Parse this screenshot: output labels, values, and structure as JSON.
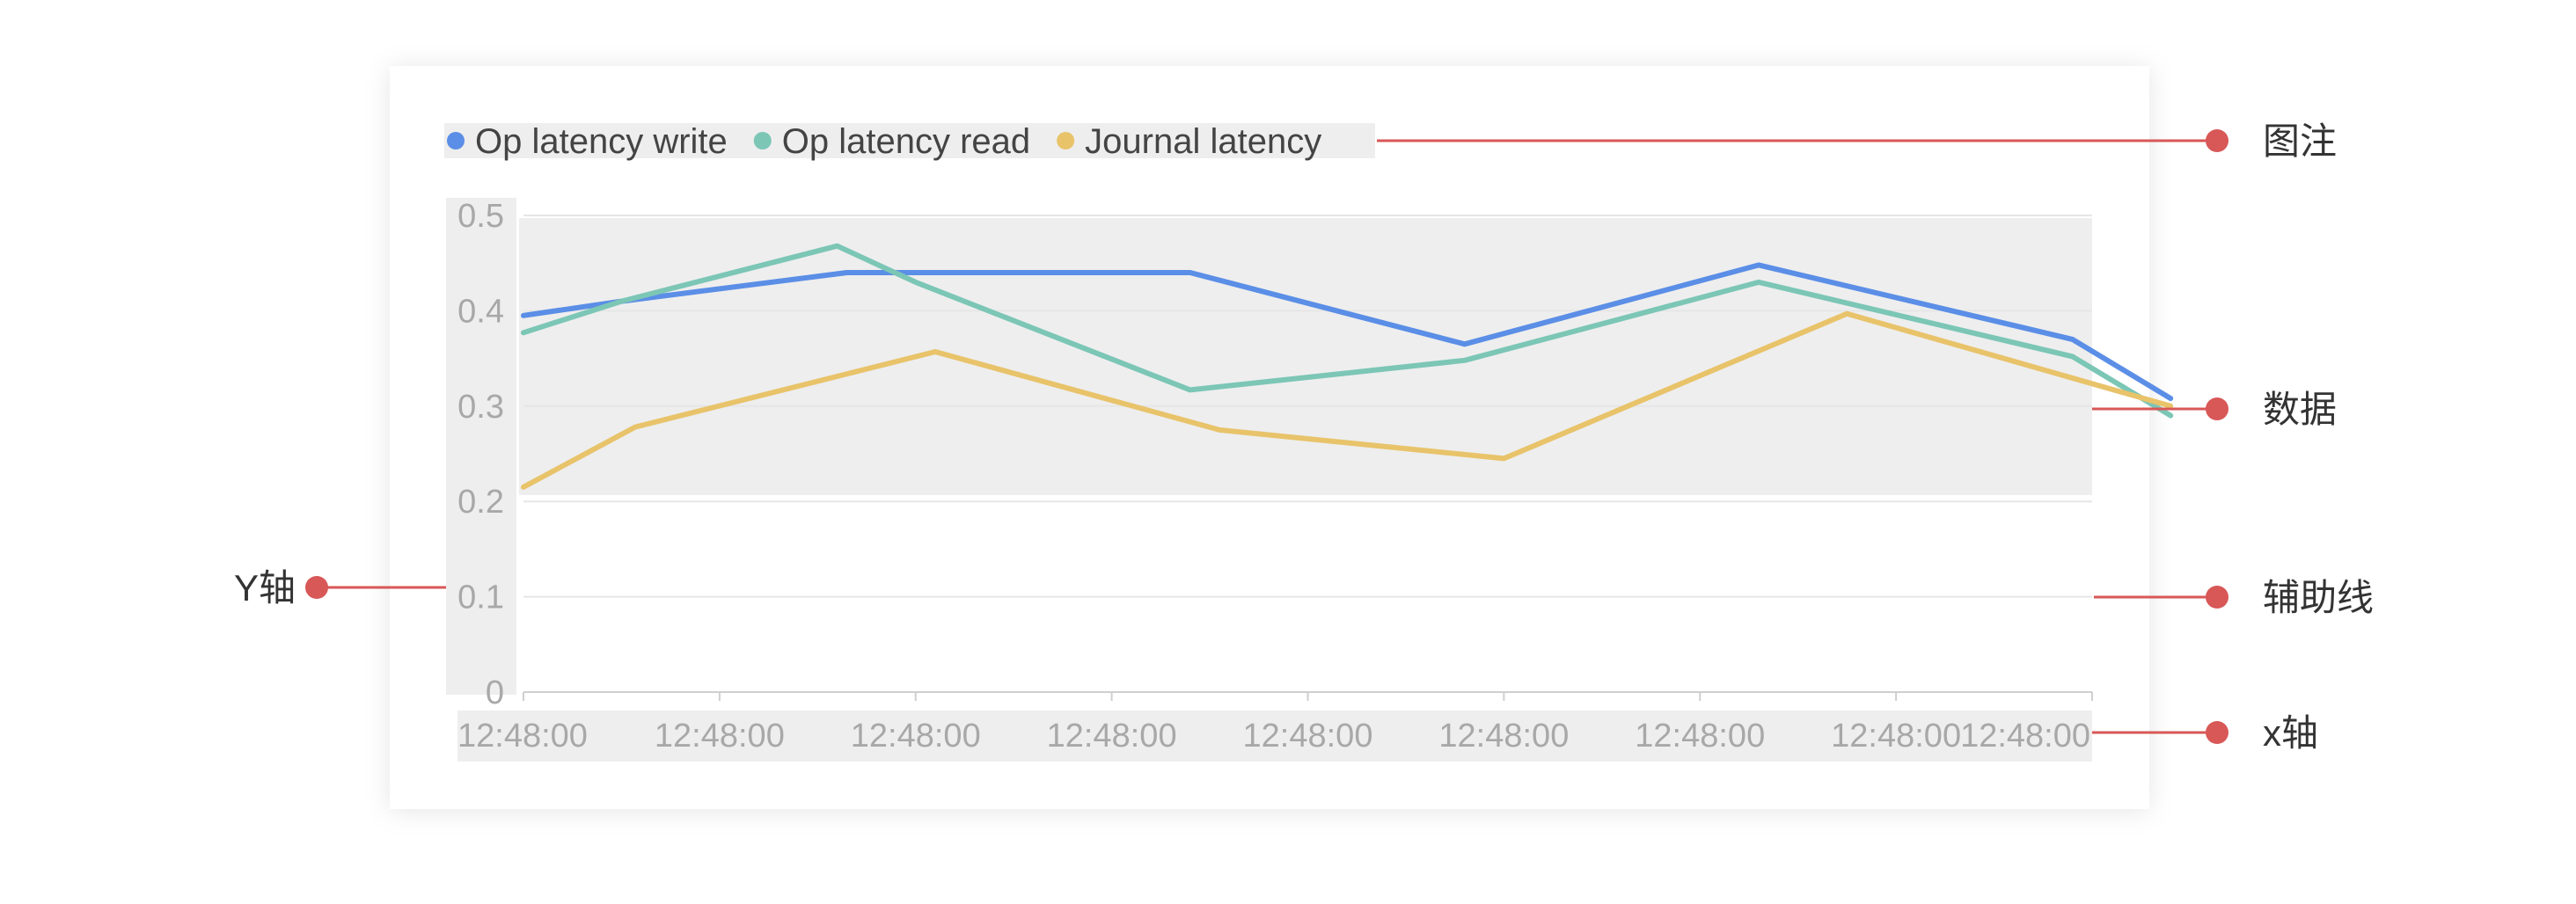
{
  "chart_data": {
    "type": "line",
    "title": "",
    "xlabel": "",
    "ylabel": "",
    "ylim": [
      0,
      0.5
    ],
    "yticks": [
      "0",
      "0.1",
      "0.2",
      "0.3",
      "0.4",
      "0.5"
    ],
    "categories": [
      "12:48:00",
      "12:48:00",
      "12:48:00",
      "12:48:00",
      "12:48:00",
      "12:48:00",
      "12:48:00",
      "12:48:00",
      "12:48:00"
    ],
    "grid": true,
    "legend_position": "top-left",
    "series": [
      {
        "name": "Op latency write",
        "color": "#5b8ee6",
        "x": [
          0,
          0.5,
          1.65,
          3.4,
          4.8,
          6.3,
          7.9,
          8.4
        ],
        "y": [
          0.395,
          0.41,
          0.44,
          0.44,
          0.365,
          0.448,
          0.37,
          0.308
        ]
      },
      {
        "name": "Op latency read",
        "color": "#7cc6b6",
        "x": [
          0,
          0.5,
          1.6,
          2.0,
          3.4,
          4.8,
          6.3,
          7.9,
          8.4
        ],
        "y": [
          0.377,
          0.41,
          0.468,
          0.43,
          0.317,
          0.348,
          0.43,
          0.352,
          0.29
        ]
      },
      {
        "name": "Journal latency",
        "color": "#e8c36a",
        "x": [
          0,
          0.57,
          2.1,
          3.55,
          5.0,
          6.75,
          8.4
        ],
        "y": [
          0.215,
          0.278,
          0.357,
          0.275,
          0.245,
          0.397,
          0.3
        ]
      }
    ]
  },
  "annotations": {
    "legend": "图注",
    "data": "数据",
    "gridline": "辅助线",
    "y_axis": "Y轴",
    "x_axis": "x轴"
  },
  "colors": {
    "callout": "#d85757"
  }
}
